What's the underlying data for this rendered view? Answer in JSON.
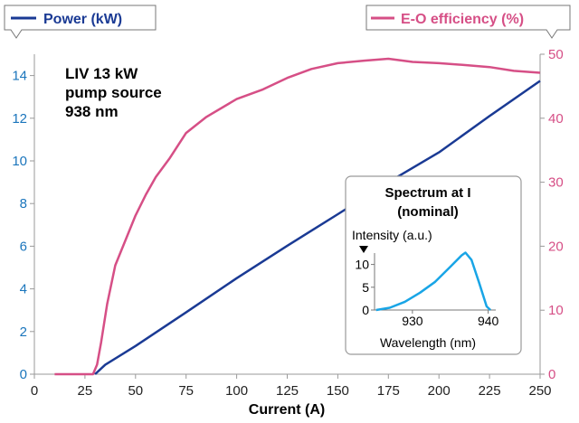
{
  "chart_data": {
    "type": "line",
    "x": {
      "label": "Current (A)",
      "lim": [
        0,
        250
      ],
      "ticks": [
        "0",
        "25",
        "50",
        "75",
        "100",
        "125",
        "150",
        "175",
        "200",
        "225",
        "250"
      ],
      "tick_values": [
        0,
        25,
        50,
        75,
        100,
        125,
        150,
        175,
        200,
        225,
        250
      ]
    },
    "y_left": {
      "label": "Power (kW)",
      "lim": [
        0,
        15
      ],
      "ticks": [
        "0",
        "2",
        "4",
        "6",
        "8",
        "10",
        "12",
        "14"
      ],
      "tick_values": [
        0,
        2,
        4,
        6,
        8,
        10,
        12,
        14
      ],
      "color": "#1a75bc"
    },
    "y_right": {
      "label": "E-O efficiency (%)",
      "lim": [
        0,
        50
      ],
      "ticks": [
        "0",
        "10",
        "20",
        "30",
        "40",
        "50"
      ],
      "tick_values": [
        0,
        10,
        20,
        30,
        40,
        50
      ],
      "color": "#d64f86"
    },
    "series": [
      {
        "name": "Power (kW)",
        "axis": "left",
        "color": "#1a3a94",
        "points": [
          [
            30,
            0
          ],
          [
            35,
            0.44
          ],
          [
            50,
            1.32
          ],
          [
            75,
            2.9
          ],
          [
            100,
            4.5
          ],
          [
            125,
            6.02
          ],
          [
            150,
            7.5
          ],
          [
            175,
            9.0
          ],
          [
            200,
            10.4
          ],
          [
            225,
            12.1
          ],
          [
            250,
            13.75
          ]
        ]
      },
      {
        "name": "E-O efficiency (%)",
        "axis": "right",
        "color": "#d64f86",
        "points": [
          [
            10,
            0
          ],
          [
            20,
            0
          ],
          [
            29,
            0
          ],
          [
            31,
            1.5
          ],
          [
            33,
            5
          ],
          [
            36,
            11
          ],
          [
            40,
            17
          ],
          [
            45,
            20.9
          ],
          [
            50,
            24.8
          ],
          [
            55,
            28
          ],
          [
            60,
            30.8
          ],
          [
            67,
            33.8
          ],
          [
            75,
            37.7
          ],
          [
            85,
            40.2
          ],
          [
            100,
            43.0
          ],
          [
            113,
            44.5
          ],
          [
            125,
            46.3
          ],
          [
            137,
            47.7
          ],
          [
            150,
            48.6
          ],
          [
            163,
            49.0
          ],
          [
            175,
            49.3
          ],
          [
            187,
            48.8
          ],
          [
            200,
            48.6
          ],
          [
            213,
            48.3
          ],
          [
            225,
            48.0
          ],
          [
            237,
            47.4
          ],
          [
            250,
            47.1
          ]
        ]
      }
    ],
    "annotation": [
      "LIV 13 kW",
      "pump source",
      "938 nm"
    ],
    "inset": {
      "title": [
        "Spectrum at I",
        "(nominal)"
      ],
      "ylabel": "Intensity (a.u.)",
      "xlabel": "Wavelength (nm)",
      "x_ticks": [
        "930",
        "940"
      ],
      "x_tick_values": [
        930,
        940
      ],
      "x_lim": [
        925,
        941
      ],
      "y_ticks": [
        "0",
        "5",
        "10"
      ],
      "y_tick_values": [
        0,
        5,
        10
      ],
      "y_lim": [
        0,
        12.5
      ],
      "color": "#19a5e6",
      "points": [
        [
          925.2,
          0
        ],
        [
          927,
          0.5
        ],
        [
          929,
          1.8
        ],
        [
          931,
          3.8
        ],
        [
          933,
          6.2
        ],
        [
          935,
          9.5
        ],
        [
          936.5,
          12.0
        ],
        [
          937,
          12.6
        ],
        [
          937.8,
          11.0
        ],
        [
          938.8,
          6.0
        ],
        [
          939.8,
          0.8
        ],
        [
          940.3,
          0
        ]
      ]
    },
    "grid": false,
    "legend": "top"
  }
}
